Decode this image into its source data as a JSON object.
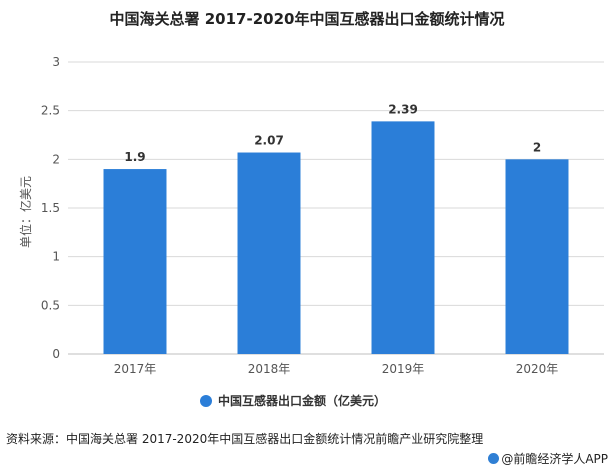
{
  "title": "中国海关总署 2017-2020年中国互感器出口金额统计情况",
  "source_text": "资料来源：中国海关总署 2017-2020年中国互感器出口金额统计情况前瞻产业研究院整理",
  "brand_text": "@前瞻经济学人APP",
  "colors": {
    "bar": "#2b7ed8",
    "grid": "#d9d9d9",
    "axis_text": "#555555"
  },
  "chart_data": {
    "type": "bar",
    "title": "中国海关总署 2017-2020年中国互感器出口金额统计情况",
    "categories": [
      "2017年",
      "2018年",
      "2019年",
      "2020年"
    ],
    "series": [
      {
        "name": "中国互感器出口金额（亿美元）",
        "values": [
          1.9,
          2.07,
          2.39,
          2
        ]
      }
    ],
    "data_labels": [
      "1.9",
      "2.07",
      "2.39",
      "2"
    ],
    "ylabel": "单位：亿美元",
    "xlabel": "",
    "ylim": [
      0,
      3
    ],
    "yticks": [
      0,
      0.5,
      1,
      1.5,
      2,
      2.5,
      3
    ],
    "ytick_labels": [
      "0",
      "0.5",
      "1",
      "1.5",
      "2",
      "2.5",
      "3"
    ],
    "grid": true,
    "legend": "bottom-center"
  }
}
